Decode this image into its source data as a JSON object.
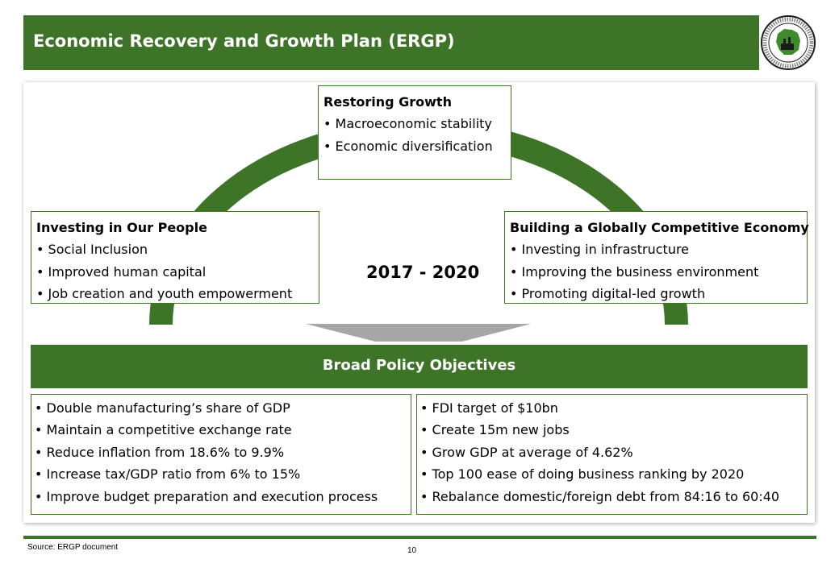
{
  "header": {
    "title": "Economic Recovery and Growth Plan (ERGP)",
    "logo_text": "NIGERIAN INVESTMENT PROMOTION COMMISSION"
  },
  "diagram": {
    "period": "2017 - 2020",
    "pillars": [
      {
        "heading": "Restoring Growth",
        "items": [
          "Macroeconomic stability",
          "Economic diversification"
        ]
      },
      {
        "heading": "Investing in Our People",
        "items": [
          "Social Inclusion",
          "Improved human capital",
          "Job creation and youth empowerment"
        ]
      },
      {
        "heading": "Building a Globally Competitive Economy",
        "items": [
          "Investing in infrastructure",
          "Improving the business environment",
          "Promoting digital-led growth"
        ]
      }
    ],
    "objectives_heading": "Broad Policy Objectives",
    "objectives_left": [
      "Double manufacturing’s share of GDP",
      "Maintain a competitive exchange rate",
      "Reduce inflation from 18.6% to 9.9%",
      "Increase tax/GDP ratio from 6% to 15%",
      "Improve budget preparation and execution process"
    ],
    "objectives_right": [
      "FDI target of $10bn",
      "Create 15m new jobs",
      "Grow GDP at average of 4.62%",
      "Top 100 ease of doing business ranking by 2020",
      "Rebalance domestic/foreign debt from 84:16 to 60:40"
    ]
  },
  "footer": {
    "source": "Source: ERGP  document",
    "page": "10"
  },
  "colors": {
    "brand_green": "#3e7427",
    "arrow_gray": "#a6a6a6"
  }
}
